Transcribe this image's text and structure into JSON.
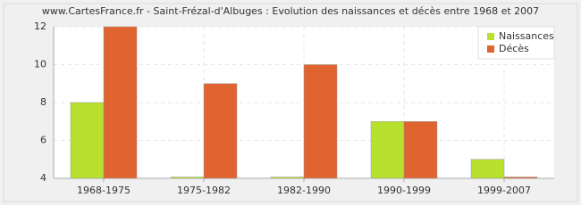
{
  "chart_data": {
    "type": "bar",
    "title": "www.CartesFrance.fr - Saint-Frézal-d'Albuges : Evolution des naissances et décès entre 1968 et 2007",
    "categories": [
      "1968-1975",
      "1975-1982",
      "1982-1990",
      "1990-1999",
      "1999-2007"
    ],
    "series": [
      {
        "name": "Naissances",
        "color": "#b8e02e",
        "values": [
          8,
          4,
          4,
          7,
          5
        ]
      },
      {
        "name": "Décès",
        "color": "#e06430",
        "values": [
          12,
          9,
          10,
          7,
          4
        ]
      }
    ],
    "ylim": [
      4,
      12
    ],
    "yticks": [
      4,
      6,
      8,
      10,
      12
    ],
    "grid": true,
    "legend": "top-right"
  }
}
